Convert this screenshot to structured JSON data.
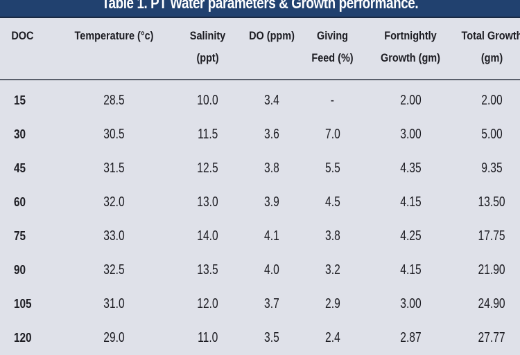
{
  "title": "Table 1. PT Water parameters & Growth performance.",
  "colors": {
    "title_bar": "#21416f",
    "background": "#dfe1e9",
    "text": "#1c1c22"
  },
  "table": {
    "headers": [
      {
        "line1": "DOC",
        "line2": ""
      },
      {
        "line1": "Temperature (°c)",
        "line2": ""
      },
      {
        "line1": "Salinity",
        "line2": "(ppt)"
      },
      {
        "line1": "DO (ppm)",
        "line2": ""
      },
      {
        "line1": "Giving",
        "line2": "Feed (%)"
      },
      {
        "line1": "Fortnightly",
        "line2": "Growth (gm)"
      },
      {
        "line1": "Total Growth",
        "line2": "(gm)"
      }
    ],
    "rows": [
      [
        "15",
        "28.5",
        "10.0",
        "3.4",
        "-",
        "2.00",
        "2.00"
      ],
      [
        "30",
        "30.5",
        "11.5",
        "3.6",
        "7.0",
        "3.00",
        "5.00"
      ],
      [
        "45",
        "31.5",
        "12.5",
        "3.8",
        "5.5",
        "4.35",
        "9.35"
      ],
      [
        "60",
        "32.0",
        "13.0",
        "3.9",
        "4.5",
        "4.15",
        "13.50"
      ],
      [
        "75",
        "33.0",
        "14.0",
        "4.1",
        "3.8",
        "4.25",
        "17.75"
      ],
      [
        "90",
        "32.5",
        "13.5",
        "4.0",
        "3.2",
        "4.15",
        "21.90"
      ],
      [
        "105",
        "31.0",
        "12.0",
        "3.7",
        "2.9",
        "3.00",
        "24.90"
      ],
      [
        "120",
        "29.0",
        "11.0",
        "3.5",
        "2.4",
        "2.87",
        "27.77"
      ]
    ]
  }
}
